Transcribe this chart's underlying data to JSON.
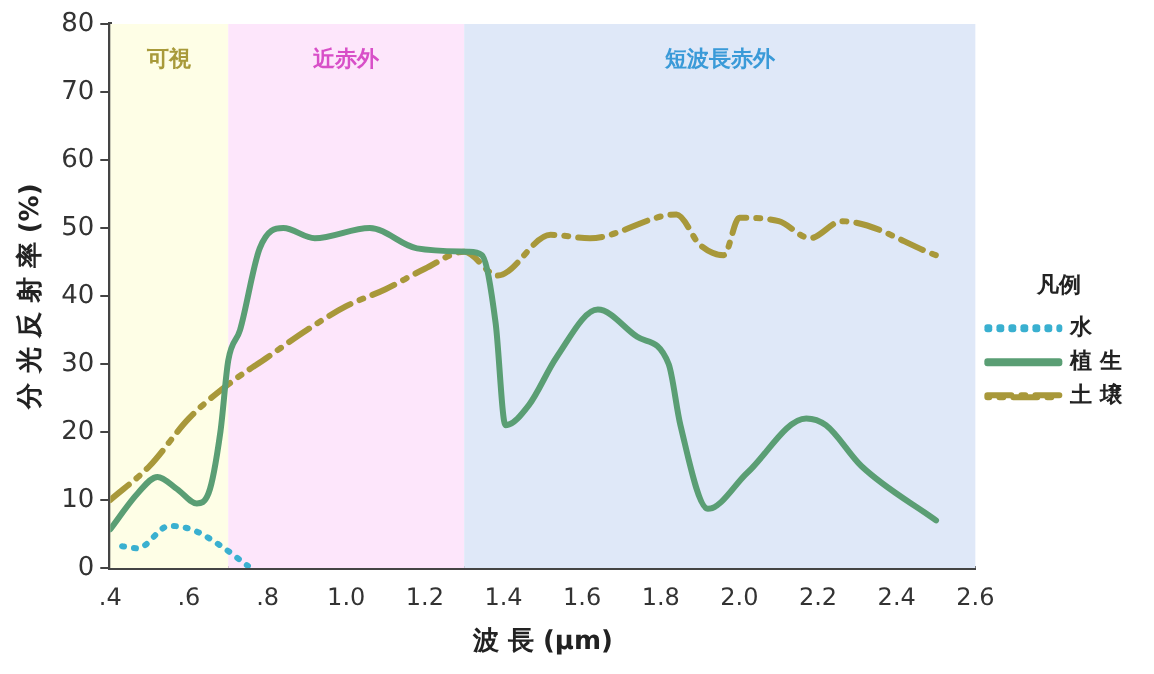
{
  "chart_data": {
    "type": "line",
    "xlabel": "波 長 (μm)",
    "ylabel": "分 光 反 射 率 (%)",
    "legend_title": "凡例",
    "xlim": [
      0.4,
      2.6
    ],
    "xticks": [
      {
        "value": 0.4,
        "label": ".4"
      },
      {
        "value": 0.6,
        "label": ".6"
      },
      {
        "value": 0.8,
        "label": ".8"
      },
      {
        "value": 1.0,
        "label": "1.0"
      },
      {
        "value": 1.2,
        "label": "1.2"
      },
      {
        "value": 1.4,
        "label": "1.4"
      },
      {
        "value": 1.6,
        "label": "1.6"
      },
      {
        "value": 1.8,
        "label": "1.8"
      },
      {
        "value": 2.0,
        "label": "2.0"
      },
      {
        "value": 2.2,
        "label": "2.2"
      },
      {
        "value": 2.4,
        "label": "2.4"
      },
      {
        "value": 2.6,
        "label": "2.6"
      }
    ],
    "ylim": [
      0,
      80
    ],
    "yticks": [
      0,
      10,
      20,
      30,
      40,
      50,
      60,
      70,
      80
    ],
    "grid": false,
    "legend": "right",
    "marker": "none",
    "bands": [
      {
        "axis": "x",
        "from": 0.4,
        "to": 0.7,
        "label": "可視",
        "color": "#fefee6"
      },
      {
        "axis": "x",
        "from": 0.7,
        "to": 1.3,
        "label": "近赤外",
        "color": "#fde6fb"
      },
      {
        "axis": "x",
        "from": 1.3,
        "to": 2.6,
        "label": "短波長赤外",
        "color": "#dfe8f8"
      }
    ],
    "series": [
      {
        "name": "水",
        "color": "#3ab0d0",
        "line_style": "dotted",
        "x": [
          0.43,
          0.47,
          0.55,
          0.61,
          0.68,
          0.75
        ],
        "values": [
          3.2,
          2.9,
          6.2,
          5.6,
          3.3,
          0.3
        ]
      },
      {
        "name": "植 生",
        "color": "#5a9e74",
        "line_style": "solid",
        "x": [
          0.4,
          0.47,
          0.52,
          0.57,
          0.62,
          0.65,
          0.68,
          0.7,
          0.73,
          0.78,
          0.84,
          0.92,
          1.06,
          1.18,
          1.31,
          1.345,
          1.38,
          1.405,
          1.465,
          1.535,
          1.64,
          1.74,
          1.82,
          1.85,
          1.92,
          2.02,
          2.17,
          2.22,
          2.31,
          2.5
        ],
        "values": [
          5.7,
          11,
          13.4,
          11.6,
          9.5,
          11,
          20,
          30.5,
          35,
          47,
          50,
          48.5,
          50,
          47,
          46.5,
          46,
          36,
          21,
          24,
          31,
          38,
          34,
          30,
          21,
          8.7,
          14,
          22,
          21,
          15,
          7
        ]
      },
      {
        "name": "土 壌",
        "color": "#a8983a",
        "line_style": "dashed",
        "x": [
          0.4,
          0.5,
          0.6,
          0.7,
          0.8,
          0.9,
          1.0,
          1.1,
          1.2,
          1.3,
          1.385,
          1.52,
          1.62,
          1.84,
          1.9,
          1.96,
          2.0,
          2.1,
          2.18,
          2.26,
          2.5
        ],
        "values": [
          10,
          15,
          22,
          27,
          31,
          35,
          38.5,
          41,
          44,
          46.5,
          43,
          49,
          48.5,
          52,
          47.5,
          46,
          51.5,
          51,
          48.5,
          51,
          46
        ]
      }
    ]
  }
}
